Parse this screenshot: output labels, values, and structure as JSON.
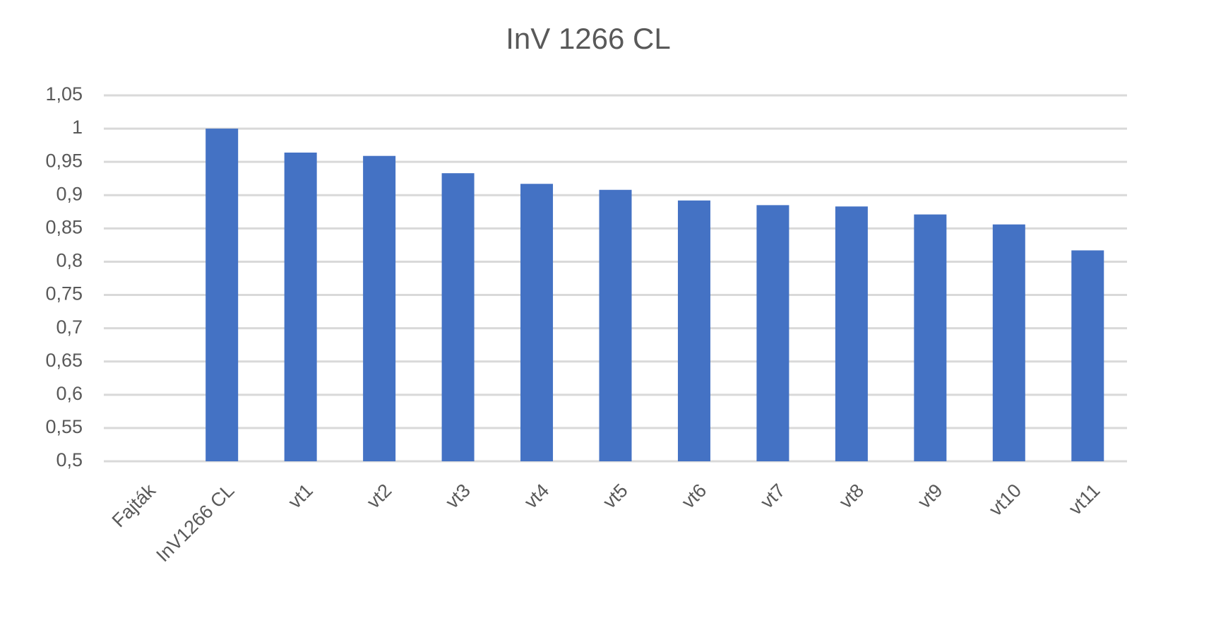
{
  "chart_data": {
    "type": "bar",
    "title": "InV 1266 CL",
    "categories": [
      "Fajták",
      "InV1266 CL",
      "vt1",
      "vt2",
      "vt3",
      "vt4",
      "vt5",
      "vt6",
      "vt7",
      "vt8",
      "vt9",
      "vt10",
      "vt11"
    ],
    "values": [
      null,
      1.0,
      0.964,
      0.959,
      0.933,
      0.917,
      0.908,
      0.892,
      0.885,
      0.883,
      0.871,
      0.856,
      0.817
    ],
    "color": "#4472c4",
    "ylim": [
      0.5,
      1.05
    ],
    "yticks": [
      {
        "value": 0.5,
        "label": "0,5"
      },
      {
        "value": 0.55,
        "label": "0,55"
      },
      {
        "value": 0.6,
        "label": "0,6"
      },
      {
        "value": 0.65,
        "label": "0,65"
      },
      {
        "value": 0.7,
        "label": "0,7"
      },
      {
        "value": 0.75,
        "label": "0,75"
      },
      {
        "value": 0.8,
        "label": "0,8"
      },
      {
        "value": 0.85,
        "label": "0,85"
      },
      {
        "value": 0.9,
        "label": "0,9"
      },
      {
        "value": 0.95,
        "label": "0,95"
      },
      1,
      {
        "value": 1.05,
        "label": "1,05"
      }
    ],
    "grid": true
  }
}
